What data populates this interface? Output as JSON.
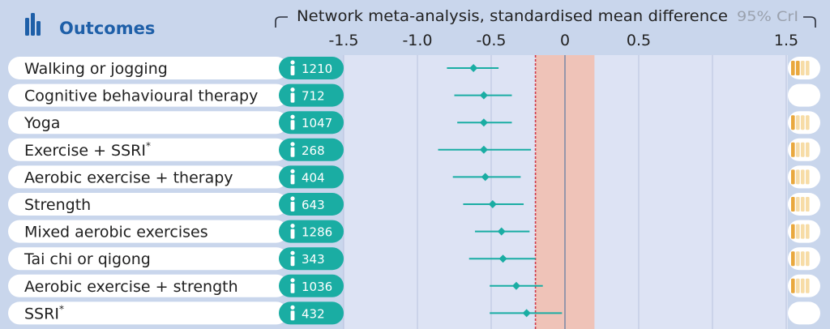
{
  "header": {
    "section_title": "Outcomes",
    "axis_title": "Network meta-analysis, standardised mean difference",
    "ci_label": "95% CrI"
  },
  "colors": {
    "background": "#c9d6ec",
    "plot_background": "#dde3f4",
    "teal": "#1aada3",
    "title_blue": "#1e5fa8",
    "null_region": "#efc3b8",
    "threshold_line": "#d0394a",
    "zero_line": "#7f8aa6",
    "certainty_fill": "#e9a83e",
    "certainty_empty": "#f7dca6"
  },
  "chart_data": {
    "type": "forest",
    "x_axis": {
      "range": [
        -1.5,
        1.5
      ],
      "ticks": [
        -1.5,
        -1.0,
        -0.5,
        0,
        0.5,
        1.5
      ],
      "tick_labels": [
        "-1.5",
        "-1.0",
        "-0.5",
        "0",
        "0.5",
        "1.5"
      ]
    },
    "null_region": [
      -0.2,
      0.2
    ],
    "threshold_line": -0.2,
    "zero_line": 0,
    "rows": [
      {
        "label": "Walking or jogging",
        "n": "1210",
        "est": -0.62,
        "lo": -0.8,
        "hi": -0.45,
        "certainty": 2,
        "superscript": ""
      },
      {
        "label": "Cognitive behavioural therapy",
        "n": "712",
        "est": -0.55,
        "lo": -0.75,
        "hi": -0.36,
        "certainty": 0,
        "superscript": ""
      },
      {
        "label": "Yoga",
        "n": "1047",
        "est": -0.55,
        "lo": -0.73,
        "hi": -0.36,
        "certainty": 1,
        "superscript": ""
      },
      {
        "label": "Exercise + SSRI",
        "n": "268",
        "est": -0.55,
        "lo": -0.86,
        "hi": -0.23,
        "certainty": 1,
        "superscript": "*"
      },
      {
        "label": "Aerobic exercise + therapy",
        "n": "404",
        "est": -0.54,
        "lo": -0.76,
        "hi": -0.3,
        "certainty": 1,
        "superscript": ""
      },
      {
        "label": "Strength",
        "n": "643",
        "est": -0.49,
        "lo": -0.69,
        "hi": -0.28,
        "certainty": 1,
        "superscript": ""
      },
      {
        "label": "Mixed aerobic exercises",
        "n": "1286",
        "est": -0.43,
        "lo": -0.61,
        "hi": -0.24,
        "certainty": 1,
        "superscript": ""
      },
      {
        "label": "Tai chi or qigong",
        "n": "343",
        "est": -0.42,
        "lo": -0.65,
        "hi": -0.2,
        "certainty": 1,
        "superscript": ""
      },
      {
        "label": "Aerobic exercise + strength",
        "n": "1036",
        "est": -0.33,
        "lo": -0.51,
        "hi": -0.15,
        "certainty": 1,
        "superscript": ""
      },
      {
        "label": "SSRI",
        "n": "432",
        "est": -0.26,
        "lo": -0.51,
        "hi": -0.02,
        "certainty": 0,
        "superscript": "*"
      }
    ]
  }
}
